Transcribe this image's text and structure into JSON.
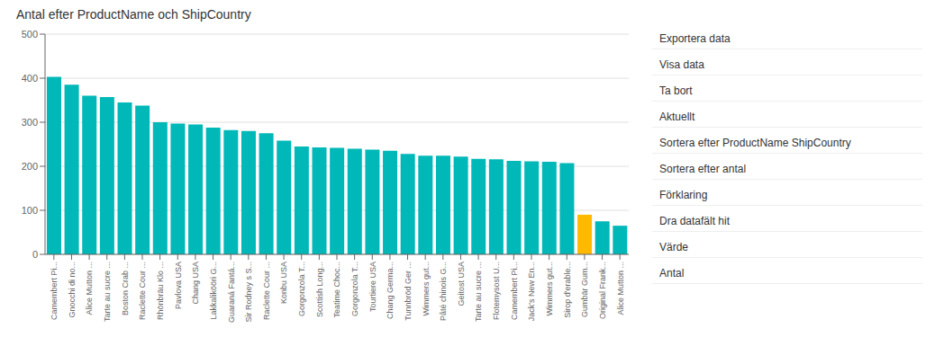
{
  "chart_data": {
    "type": "bar",
    "title": "Antal efter ProductName och ShipCountry",
    "categories": [
      "Camembert Pi...",
      "Gnocchi di no...",
      "Alice Mutton ...",
      "Tarte au sucre ...",
      "Boston Crab ...",
      "Raclette Cour ...",
      "Rhönbräu Klo ...",
      "Pavlova USA",
      "Chang USA",
      "Lakkalikööri G...",
      "Guaraná Fantá...",
      "Sir Rodney s S...",
      "Raclette Cour ...",
      "Konbu USA",
      "Gorgonzola T...",
      "Scottish Long...",
      "Teatime Choc...",
      "Gorgonzola T...",
      "Tourtiere USA",
      "Chang Germa...",
      "Tunnbröd Ger ...",
      "Wimmers gut...",
      "Pâté chinois G...",
      "Geitost USA",
      "Tarte au sucre ...",
      "Flotemysost U...",
      "Camembert Pi...",
      "Jack's New En...",
      "Wimmers gut...",
      "Sirop d'erable...",
      "Gumbär Gum...",
      "Original Frank...",
      "Alice Mutton ..."
    ],
    "values": [
      403,
      385,
      360,
      357,
      345,
      338,
      300,
      297,
      295,
      288,
      282,
      280,
      275,
      258,
      245,
      243,
      242,
      240,
      238,
      235,
      228,
      224,
      224,
      222,
      217,
      216,
      212,
      211,
      210,
      207,
      90,
      75,
      65
    ],
    "colors": [
      "#00B8B8",
      "#00B8B8",
      "#00B8B8",
      "#00B8B8",
      "#00B8B8",
      "#00B8B8",
      "#00B8B8",
      "#00B8B8",
      "#00B8B8",
      "#00B8B8",
      "#00B8B8",
      "#00B8B8",
      "#00B8B8",
      "#00B8B8",
      "#00B8B8",
      "#00B8B8",
      "#00B8B8",
      "#00B8B8",
      "#00B8B8",
      "#00B8B8",
      "#00B8B8",
      "#00B8B8",
      "#00B8B8",
      "#00B8B8",
      "#00B8B8",
      "#00B8B8",
      "#00B8B8",
      "#00B8B8",
      "#00B8B8",
      "#00B8B8",
      "#FFB900",
      "#00B8B8",
      "#00B8B8"
    ],
    "ylim": [
      0,
      500
    ],
    "yticks": [
      0,
      100,
      200,
      300,
      400,
      500
    ],
    "grid": true,
    "annotations": [
      "Exportera data",
      "Visa data",
      "Ta bort",
      "Aktuellt",
      "Sortera efter ProductName ShipCountry",
      "Sortera efter antal",
      "Förklaring",
      "Dra datafält hit",
      "Värde",
      "Antal"
    ]
  }
}
